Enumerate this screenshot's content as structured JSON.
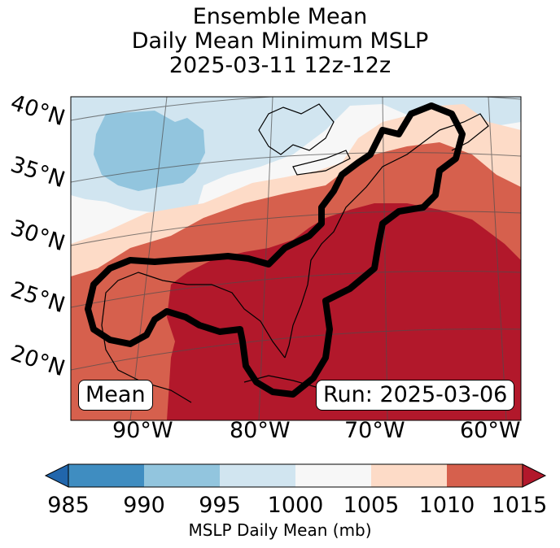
{
  "title": {
    "line1": "Ensemble Mean",
    "line2": "Daily Mean Minimum MSLP",
    "line3": "2025-03-11 12z-12z"
  },
  "map": {
    "lat_labels": [
      "40°N",
      "35°N",
      "30°N",
      "25°N",
      "20°N"
    ],
    "lon_labels": [
      "90°W",
      "80°W",
      "70°W",
      "60°W"
    ],
    "left_label": "Mean",
    "right_label": "Run: 2025-03-06",
    "contour_color": "#000000"
  },
  "colorbar": {
    "label": "MSLP Daily Mean (mb)",
    "ticks": [
      "985",
      "990",
      "995",
      "1000",
      "1005",
      "1010",
      "1015"
    ],
    "colors": [
      "#2166ac",
      "#3f8dc1",
      "#92c5de",
      "#d1e5f0",
      "#f7f7f7",
      "#fddbc7",
      "#d6604d",
      "#b2182b"
    ]
  }
}
